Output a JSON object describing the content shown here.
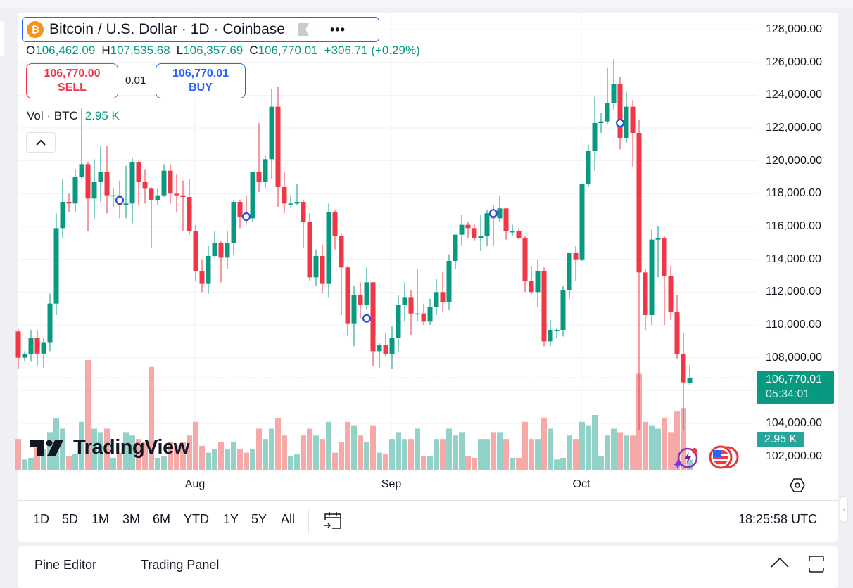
{
  "header": {
    "coin_glyph": "₿",
    "symbol_title": "Bitcoin / U.S. Dollar · 1D · Coinbase",
    "more_icon": "•••",
    "ohlc": {
      "o_label": "O",
      "o": "106,462.09",
      "h_label": "H",
      "h": "107,535.68",
      "l_label": "L",
      "l": "106,357.69",
      "c_label": "C",
      "c": "106,770.01",
      "change": "+306.71 (+0.29%)"
    },
    "sell": {
      "price": "106,770.00",
      "label": "SELL"
    },
    "spread": "0.01",
    "buy": {
      "price": "106,770.01",
      "label": "BUY"
    },
    "volume": {
      "label": "Vol · BTC",
      "value": "2.95 K"
    },
    "collapse_icon": "^"
  },
  "price_axis": {
    "ticks": [
      "128,000.00",
      "126,000.00",
      "124,000.00",
      "122,000.00",
      "120,000.00",
      "118,000.00",
      "116,000.00",
      "114,000.00",
      "112,000.00",
      "110,000.00",
      "108,000.00",
      "104,000.00",
      "102,000.00"
    ],
    "last_price": "106,770.01",
    "countdown": "05:34:01",
    "volume_label": "2.95 K"
  },
  "time_axis": {
    "months": [
      "Aug",
      "Sep",
      "Oct"
    ]
  },
  "watermark": "TradingView",
  "toolbar": {
    "ranges": [
      "1D",
      "5D",
      "1M",
      "3M",
      "6M",
      "YTD",
      "1Y",
      "5Y",
      "All"
    ],
    "clock": "18:25:58 UTC"
  },
  "bottom_panel": {
    "tabs": [
      "Pine Editor",
      "Trading Panel"
    ]
  },
  "colors": {
    "up": "#089981",
    "down": "#f23645",
    "vol_up": "#92d2c8",
    "vol_down": "#f7a9a8",
    "accent": "#2962ff"
  },
  "chart_data": {
    "type": "candlestick",
    "symbol": "Bitcoin / U.S. Dollar",
    "interval": "1D",
    "first_date": "Jul 4",
    "last_date": "Oct 18",
    "ylim": [
      101000,
      129000
    ],
    "volume_units": "K BTC",
    "fields": [
      "open",
      "high",
      "low",
      "close",
      "volume"
    ],
    "candles": [
      [
        109600,
        109750,
        107300,
        108000,
        9
      ],
      [
        108000,
        108400,
        107800,
        108200,
        3
      ],
      [
        108200,
        109700,
        107800,
        109200,
        3.5
      ],
      [
        109200,
        109700,
        107500,
        108250,
        6.5
      ],
      [
        108250,
        109200,
        107400,
        108950,
        6
      ],
      [
        108950,
        111900,
        108400,
        111300,
        11
      ],
      [
        111300,
        116800,
        110600,
        115900,
        15
      ],
      [
        115900,
        118900,
        115300,
        117500,
        12
      ],
      [
        117500,
        118000,
        116900,
        117400,
        4
      ],
      [
        117400,
        119500,
        116900,
        119000,
        4.5
      ],
      [
        119000,
        123200,
        118900,
        119800,
        14
      ],
      [
        119800,
        119900,
        115700,
        117700,
        32
      ],
      [
        117700,
        120100,
        116500,
        118700,
        12
      ],
      [
        118700,
        120900,
        117500,
        119300,
        11
      ],
      [
        119300,
        120900,
        116800,
        117900,
        12
      ],
      [
        117900,
        118300,
        117200,
        117900,
        3.5
      ],
      [
        117900,
        118800,
        116500,
        117300,
        5
      ],
      [
        117300,
        119700,
        116500,
        117400,
        11
      ],
      [
        117400,
        120200,
        116200,
        119900,
        10
      ],
      [
        119900,
        120000,
        117300,
        118700,
        9
      ],
      [
        118700,
        119500,
        117400,
        118300,
        8
      ],
      [
        118300,
        118400,
        114700,
        117600,
        30
      ],
      [
        117600,
        118300,
        117300,
        117900,
        3.5
      ],
      [
        117900,
        119800,
        117800,
        119400,
        4
      ],
      [
        119400,
        119800,
        117400,
        118000,
        8
      ],
      [
        118000,
        119200,
        116900,
        117900,
        7
      ],
      [
        117900,
        118800,
        115700,
        117800,
        8
      ],
      [
        117800,
        118900,
        115500,
        115700,
        10
      ],
      [
        115700,
        116100,
        112700,
        113300,
        14
      ],
      [
        113300,
        114000,
        112000,
        112500,
        7
      ],
      [
        112500,
        114800,
        111900,
        114200,
        5
      ],
      [
        114200,
        115700,
        114100,
        115000,
        6
      ],
      [
        115000,
        115100,
        112600,
        114100,
        8
      ],
      [
        114100,
        115700,
        113400,
        115000,
        6
      ],
      [
        115000,
        117600,
        114300,
        117500,
        8
      ],
      [
        117500,
        117600,
        115900,
        116600,
        6
      ],
      [
        116600,
        117900,
        116100,
        116500,
        5
      ],
      [
        116500,
        119300,
        116300,
        119300,
        6
      ],
      [
        119300,
        122300,
        118100,
        118700,
        12
      ],
      [
        118700,
        120300,
        118300,
        120100,
        9
      ],
      [
        120100,
        124400,
        118900,
        123300,
        12
      ],
      [
        123300,
        124500,
        117200,
        118400,
        15
      ],
      [
        118400,
        119300,
        116800,
        117400,
        10
      ],
      [
        117400,
        117900,
        117200,
        117400,
        4
      ],
      [
        117400,
        118600,
        117300,
        117500,
        4.5
      ],
      [
        117500,
        117600,
        114700,
        116300,
        10
      ],
      [
        116300,
        116800,
        112700,
        112900,
        12
      ],
      [
        112900,
        114600,
        112400,
        114200,
        10
      ],
      [
        114200,
        114900,
        111900,
        112500,
        9
      ],
      [
        112500,
        117400,
        111700,
        116900,
        14
      ],
      [
        116900,
        117000,
        114600,
        115400,
        5
      ],
      [
        115400,
        115600,
        110600,
        113500,
        8
      ],
      [
        113500,
        113600,
        109300,
        110100,
        14
      ],
      [
        110100,
        112400,
        108700,
        111800,
        13
      ],
      [
        111800,
        112600,
        110400,
        111200,
        10
      ],
      [
        111200,
        113500,
        110900,
        112600,
        8
      ],
      [
        112600,
        112600,
        107500,
        108400,
        13
      ],
      [
        108400,
        108900,
        107400,
        108800,
        5
      ],
      [
        108800,
        109500,
        108100,
        108200,
        4.5
      ],
      [
        108200,
        109900,
        107300,
        109200,
        9
      ],
      [
        109200,
        111800,
        108400,
        111200,
        11
      ],
      [
        111200,
        112600,
        110200,
        111700,
        9
      ],
      [
        111700,
        112100,
        109400,
        110700,
        9
      ],
      [
        110700,
        113400,
        110200,
        110700,
        12
      ],
      [
        110700,
        111300,
        110000,
        110200,
        4
      ],
      [
        110200,
        111600,
        110000,
        111100,
        4
      ],
      [
        111100,
        112800,
        110600,
        112000,
        9
      ],
      [
        112000,
        113200,
        110800,
        111400,
        9
      ],
      [
        111400,
        114300,
        110900,
        113900,
        12
      ],
      [
        113900,
        115500,
        113400,
        115500,
        10
      ],
      [
        115500,
        116700,
        114800,
        116100,
        11
      ],
      [
        116100,
        116300,
        115300,
        115900,
        4
      ],
      [
        115900,
        116100,
        115100,
        115300,
        3.5
      ],
      [
        115300,
        116700,
        114500,
        115400,
        9
      ],
      [
        115400,
        117000,
        114800,
        116800,
        9
      ],
      [
        116800,
        117300,
        114800,
        116500,
        11
      ],
      [
        116500,
        117900,
        116300,
        117100,
        11
      ],
      [
        117100,
        117100,
        115200,
        115700,
        9
      ],
      [
        115700,
        116100,
        115400,
        115700,
        3.5
      ],
      [
        115700,
        115900,
        115200,
        115300,
        3.5
      ],
      [
        115300,
        115400,
        112000,
        112700,
        14
      ],
      [
        112700,
        113600,
        111900,
        112000,
        9
      ],
      [
        112000,
        114000,
        111100,
        113300,
        9
      ],
      [
        113300,
        113500,
        108700,
        109000,
        15
      ],
      [
        109000,
        110300,
        108700,
        109700,
        12
      ],
      [
        109700,
        109800,
        109200,
        109700,
        3
      ],
      [
        109700,
        112400,
        109300,
        112100,
        3.5
      ],
      [
        112100,
        114400,
        111600,
        114400,
        10
      ],
      [
        114400,
        114800,
        112700,
        114000,
        9
      ],
      [
        114000,
        118600,
        113900,
        118600,
        14
      ],
      [
        118600,
        121000,
        118400,
        120600,
        13
      ],
      [
        120600,
        123900,
        119400,
        122300,
        16
      ],
      [
        122300,
        122900,
        121700,
        122400,
        4
      ],
      [
        122400,
        125700,
        122200,
        123500,
        10
      ],
      [
        123500,
        126200,
        123100,
        124700,
        12
      ],
      [
        124700,
        125100,
        120700,
        121400,
        11
      ],
      [
        121400,
        124200,
        121100,
        123300,
        10
      ],
      [
        123300,
        123700,
        119600,
        121700,
        10
      ],
      [
        121700,
        122500,
        103600,
        113200,
        28
      ],
      [
        113200,
        113400,
        109700,
        110600,
        14
      ],
      [
        110600,
        115800,
        110000,
        115200,
        13
      ],
      [
        115200,
        116000,
        112900,
        115300,
        12
      ],
      [
        115300,
        115400,
        110000,
        113000,
        15
      ],
      [
        113000,
        113600,
        110300,
        110800,
        11
      ],
      [
        110800,
        111800,
        107900,
        108200,
        17
      ],
      [
        108200,
        109500,
        103600,
        106500,
        18
      ],
      [
        106462,
        107536,
        106358,
        106770,
        2.95
      ]
    ],
    "event_markers": [
      {
        "date": "Jul 20",
        "price": 117600
      },
      {
        "date": "Aug 9",
        "price": 116600
      },
      {
        "date": "Aug 28",
        "price": 110400
      },
      {
        "date": "Sep 17",
        "price": 116800
      },
      {
        "date": "Oct 7",
        "price": 122300
      }
    ],
    "last_price_line": 106770.01
  }
}
